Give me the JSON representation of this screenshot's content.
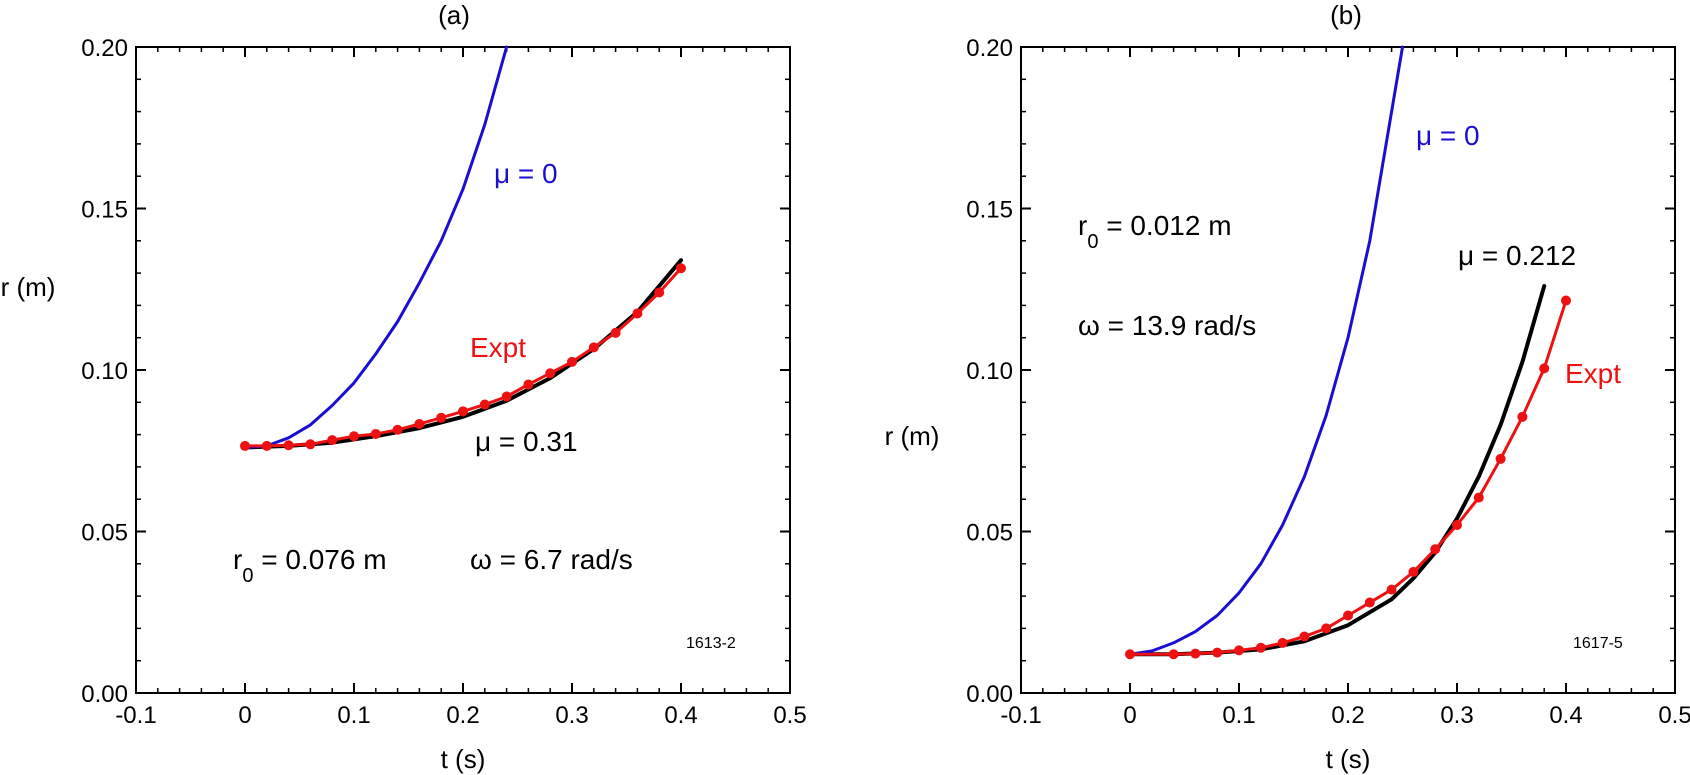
{
  "chart_data": [
    {
      "type": "line",
      "panel_label": "(a)",
      "xlabel": "t (s)",
      "ylabel": "r (m)",
      "xlim": [
        -0.1,
        0.5
      ],
      "ylim": [
        0.0,
        0.2
      ],
      "xticks": [
        -0.1,
        0,
        0.1,
        0.2,
        0.3,
        0.4,
        0.5
      ],
      "xtick_labels": [
        "-0.1",
        "0",
        "0.1",
        "0.2",
        "0.3",
        "0.4",
        "0.5"
      ],
      "yticks": [
        0.0,
        0.05,
        0.1,
        0.15,
        0.2
      ],
      "ytick_labels": [
        "0.00",
        "0.05",
        "0.10",
        "0.15",
        "0.20"
      ],
      "grid": false,
      "series": [
        {
          "name": "μ = 0",
          "color": "#1a0fd0",
          "markers": false,
          "x": [
            0,
            0.02,
            0.04,
            0.06,
            0.08,
            0.1,
            0.12,
            0.14,
            0.16,
            0.18,
            0.2,
            0.22,
            0.24
          ],
          "y": [
            0.076,
            0.0765,
            0.079,
            0.083,
            0.089,
            0.096,
            0.105,
            0.115,
            0.127,
            0.14,
            0.156,
            0.176,
            0.2
          ]
        },
        {
          "name": "μ = 0.31",
          "color": "#000000",
          "markers": false,
          "x": [
            0,
            0.04,
            0.08,
            0.12,
            0.16,
            0.2,
            0.24,
            0.28,
            0.32,
            0.36,
            0.4
          ],
          "y": [
            0.076,
            0.0765,
            0.0775,
            0.0795,
            0.082,
            0.0855,
            0.0905,
            0.0975,
            0.1065,
            0.118,
            0.134
          ]
        },
        {
          "name": "Expt",
          "color": "#ee1111",
          "markers": true,
          "x": [
            0,
            0.02,
            0.04,
            0.06,
            0.08,
            0.1,
            0.12,
            0.14,
            0.16,
            0.18,
            0.2,
            0.22,
            0.24,
            0.26,
            0.28,
            0.3,
            0.32,
            0.34,
            0.36,
            0.38,
            0.4
          ],
          "y": [
            0.0765,
            0.0765,
            0.0767,
            0.077,
            0.0783,
            0.0795,
            0.0802,
            0.0815,
            0.0833,
            0.0852,
            0.0872,
            0.0893,
            0.0918,
            0.0955,
            0.099,
            0.1025,
            0.107,
            0.1115,
            0.1175,
            0.124,
            0.1315
          ]
        }
      ],
      "annotations": {
        "mu0": "μ = 0",
        "expt": "Expt",
        "mu_fit": "μ = 0.31",
        "r0_prefix": "r",
        "r0_sub": "0",
        "r0_value": " = 0.076 m",
        "omega": "ω = 6.7 rad/s",
        "code": "1613-2"
      }
    },
    {
      "type": "line",
      "panel_label": "(b)",
      "xlabel": "t (s)",
      "ylabel": "r (m)",
      "xlim": [
        -0.1,
        0.5
      ],
      "ylim": [
        0.0,
        0.2
      ],
      "xticks": [
        -0.1,
        0,
        0.1,
        0.2,
        0.3,
        0.4,
        0.5
      ],
      "xtick_labels": [
        "-0.1",
        "0",
        "0.1",
        "0.2",
        "0.3",
        "0.4",
        "0.5"
      ],
      "yticks": [
        0.0,
        0.05,
        0.1,
        0.15,
        0.2
      ],
      "ytick_labels": [
        "0.00",
        "0.05",
        "0.10",
        "0.15",
        "0.20"
      ],
      "grid": false,
      "series": [
        {
          "name": "μ = 0",
          "color": "#1a0fd0",
          "markers": false,
          "x": [
            0,
            0.02,
            0.04,
            0.06,
            0.08,
            0.1,
            0.12,
            0.14,
            0.16,
            0.18,
            0.2,
            0.22,
            0.24,
            0.25
          ],
          "y": [
            0.012,
            0.013,
            0.0155,
            0.019,
            0.024,
            0.031,
            0.04,
            0.052,
            0.067,
            0.086,
            0.11,
            0.14,
            0.18,
            0.2
          ]
        },
        {
          "name": "μ = 0.212",
          "color": "#000000",
          "markers": false,
          "x": [
            0,
            0.04,
            0.08,
            0.12,
            0.16,
            0.2,
            0.24,
            0.26,
            0.28,
            0.3,
            0.32,
            0.34,
            0.36,
            0.38
          ],
          "y": [
            0.012,
            0.012,
            0.0125,
            0.0135,
            0.016,
            0.021,
            0.029,
            0.0355,
            0.0435,
            0.054,
            0.067,
            0.083,
            0.1025,
            0.126
          ]
        },
        {
          "name": "Expt",
          "color": "#ee1111",
          "markers": true,
          "x": [
            0,
            0.04,
            0.06,
            0.08,
            0.1,
            0.12,
            0.14,
            0.16,
            0.18,
            0.2,
            0.22,
            0.24,
            0.26,
            0.28,
            0.3,
            0.32,
            0.34,
            0.36,
            0.38,
            0.4
          ],
          "y": [
            0.012,
            0.012,
            0.0122,
            0.0125,
            0.0132,
            0.014,
            0.0155,
            0.0175,
            0.02,
            0.024,
            0.028,
            0.032,
            0.0375,
            0.0445,
            0.052,
            0.0605,
            0.0725,
            0.0855,
            0.1005,
            0.1215
          ]
        }
      ],
      "annotations": {
        "mu0": "μ = 0",
        "r0_prefix": "r",
        "r0_sub": "0",
        "r0_value": " = 0.012 m",
        "mu_fit": "μ = 0.212",
        "omega": "ω = 13.9 rad/s",
        "expt": "Expt",
        "code": "1617-5"
      }
    }
  ]
}
